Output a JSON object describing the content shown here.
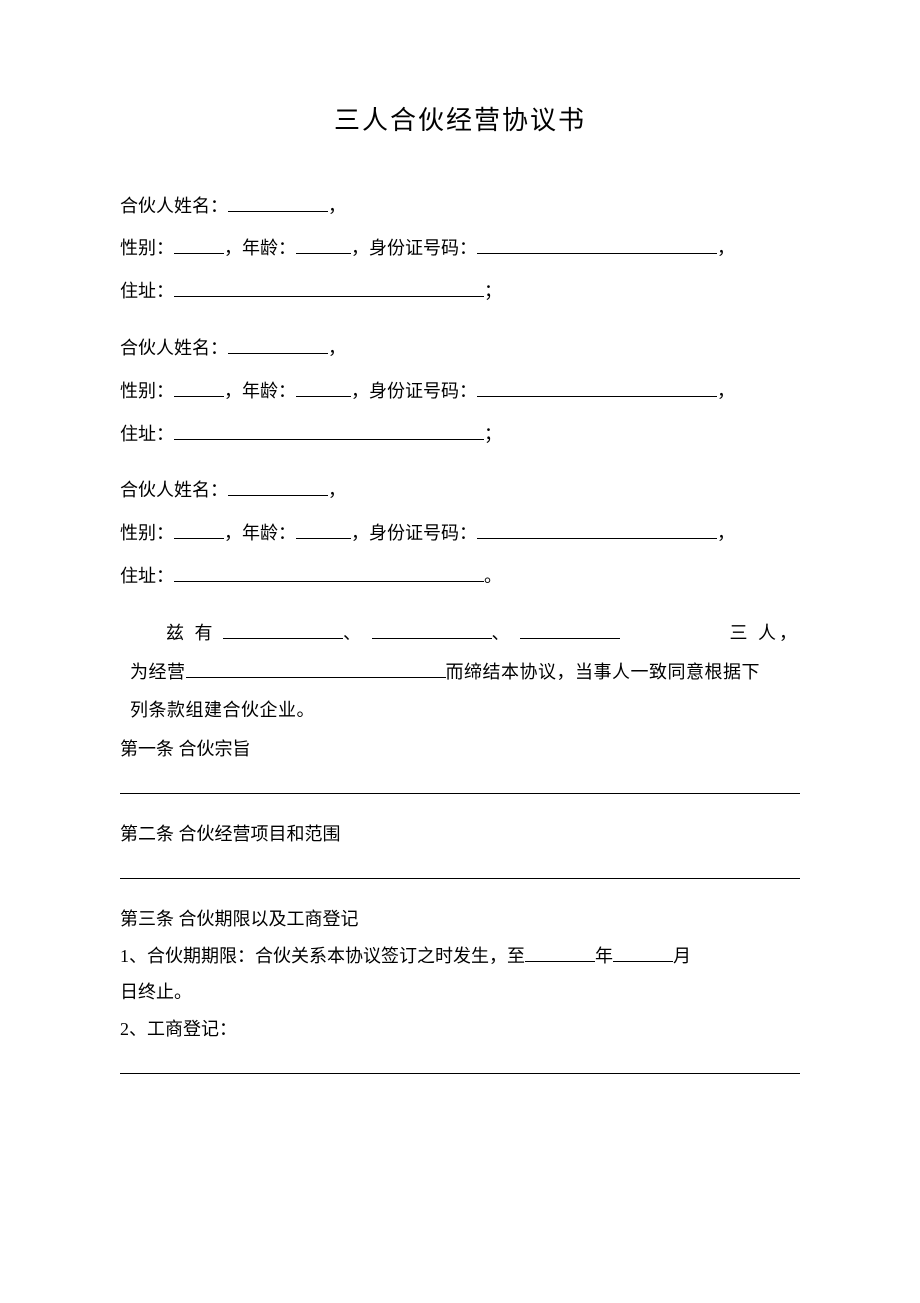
{
  "title": "三人合伙经营协议书",
  "partner_labels": {
    "name": "合伙人姓名：",
    "gender": "性别：",
    "age": "年龄：",
    "id": "身份证号码：",
    "address": "住址："
  },
  "punct": {
    "comma": "，",
    "semicolon": "；",
    "period": "。",
    "dun": "、"
  },
  "intro": {
    "prefix": "兹  有",
    "suffix": "三  人，",
    "line2_prefix": "为经营",
    "line2_suffix": "而缔结本协议，当事人一致同意根据下",
    "line3": "列条款组建合伙企业。"
  },
  "article1": {
    "heading": "第一条  合伙宗旨"
  },
  "article2": {
    "heading": "第二条  合伙经营项目和范围"
  },
  "article3": {
    "heading": "第三条  合伙期限以及工商登记",
    "item1_prefix": "1、合伙期期限：合伙关系本协议签订之时发生，至",
    "item1_year": "年",
    "item1_month": "月",
    "item1_line2": "日终止。",
    "item2": "2、工商登记："
  },
  "colors": {
    "text": "#000000",
    "background": "#ffffff",
    "underline": "#000000"
  },
  "typography": {
    "title_fontsize": 26,
    "body_fontsize": 18,
    "font_family": "SimSun"
  }
}
